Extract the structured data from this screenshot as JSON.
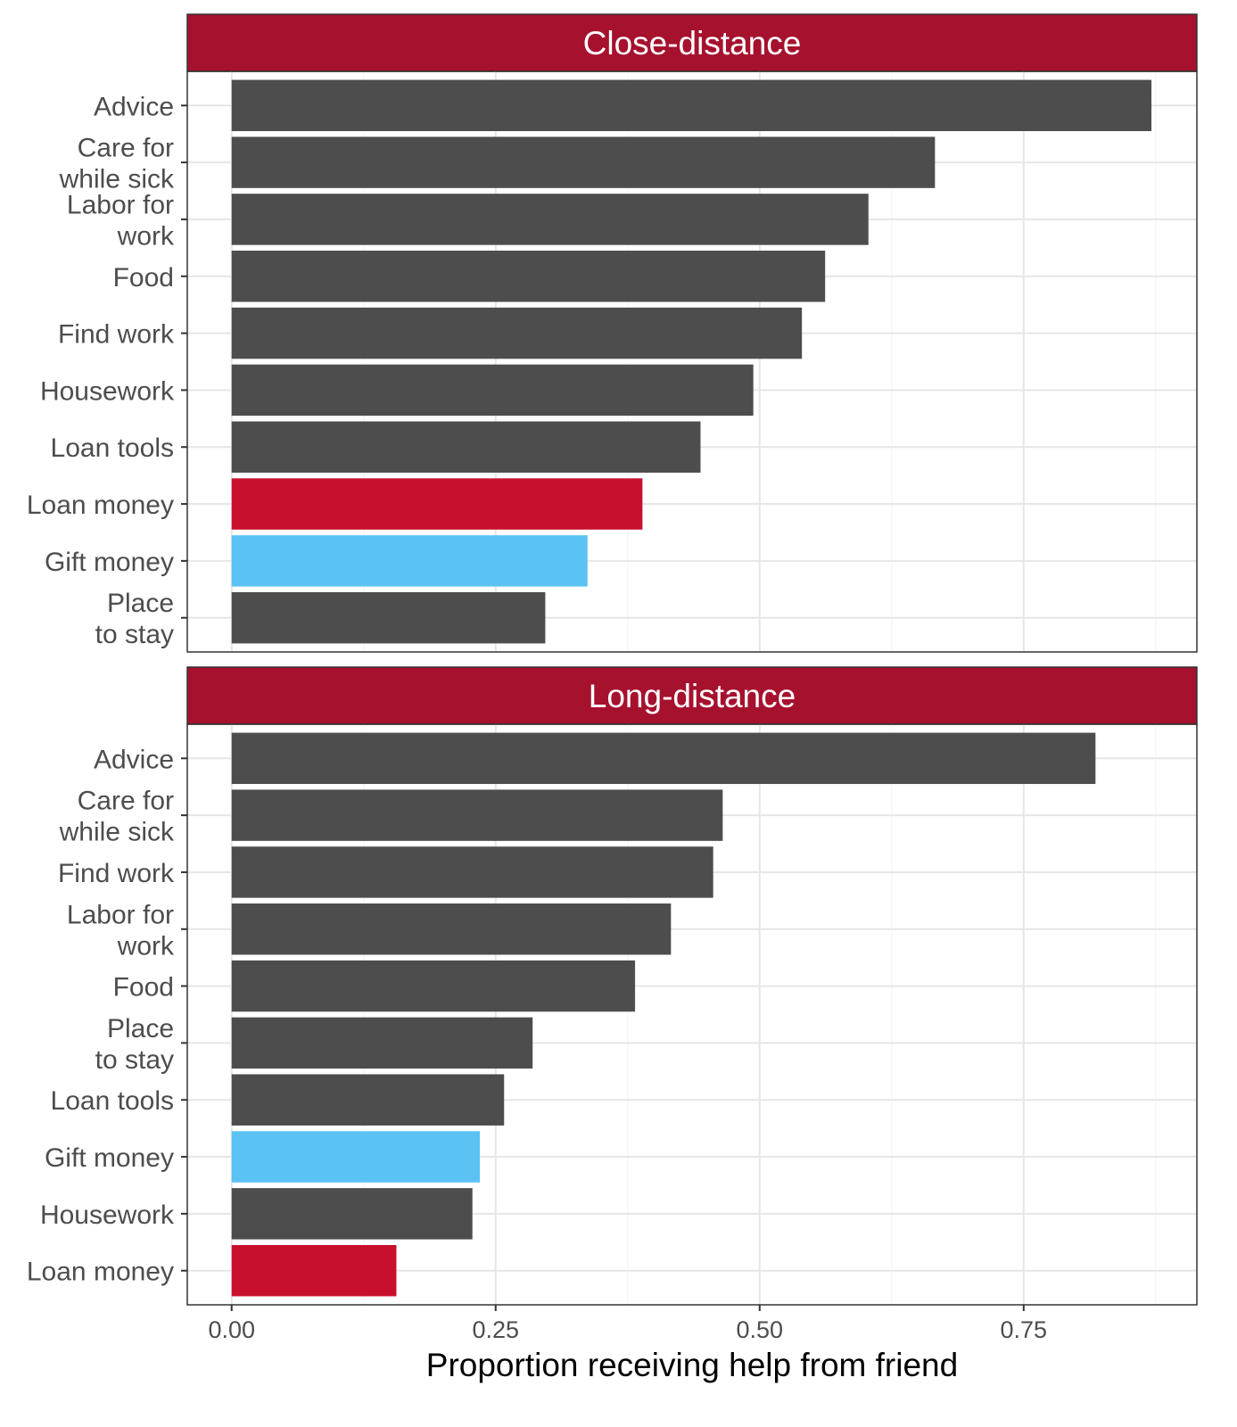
{
  "chart_data": {
    "type": "bar",
    "orientation": "horizontal",
    "xlabel": "Proportion receiving help from friend",
    "ylabel": "",
    "xlim": [
      -0.042,
      0.914
    ],
    "xticks": [
      "0.00",
      "0.25",
      "0.50",
      "0.75"
    ],
    "xtick_values": [
      0,
      0.25,
      0.5,
      0.75
    ],
    "grid": true,
    "colors": {
      "strip": "#A6112E",
      "default_bar": "#4D4D4D",
      "loan_money": "#C8102E",
      "gift_money": "#5BC2F4"
    },
    "panels": [
      {
        "title": "Close-distance",
        "categories": [
          "Advice",
          "Care for\nwhile sick",
          "Labor for\nwork",
          "Food",
          "Find work",
          "Housework",
          "Loan tools",
          "Loan money",
          "Gift money",
          "Place\nto stay"
        ],
        "values": [
          0.871,
          0.666,
          0.603,
          0.562,
          0.54,
          0.494,
          0.444,
          0.389,
          0.337,
          0.297
        ]
      },
      {
        "title": "Long-distance",
        "categories": [
          "Advice",
          "Care for\nwhile sick",
          "Find work",
          "Labor for\nwork",
          "Food",
          "Place\nto stay",
          "Loan tools",
          "Gift money",
          "Housework",
          "Loan money"
        ],
        "values": [
          0.818,
          0.465,
          0.456,
          0.416,
          0.382,
          0.285,
          0.258,
          0.235,
          0.228,
          0.156
        ]
      }
    ]
  }
}
